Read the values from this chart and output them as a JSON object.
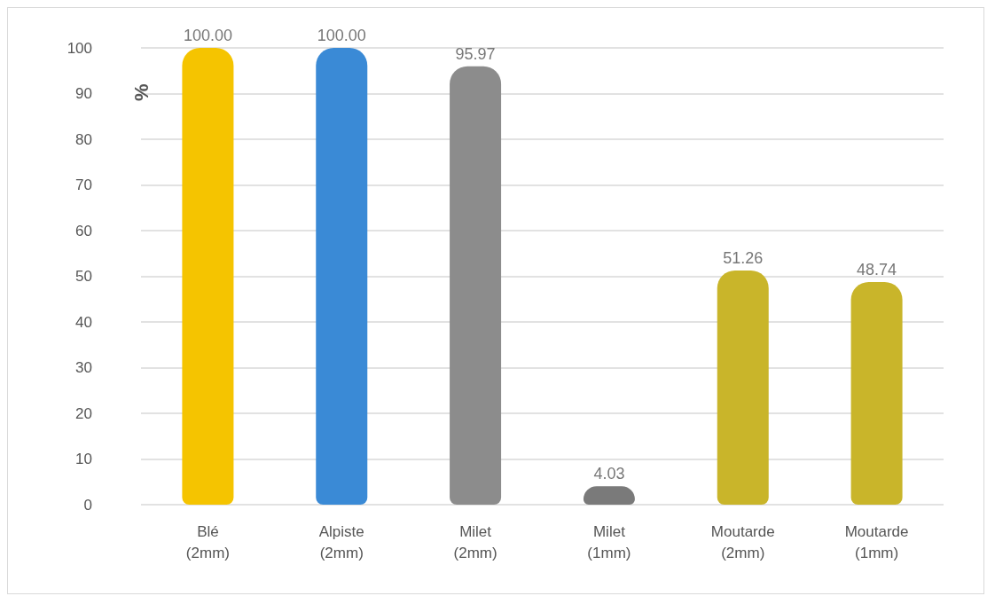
{
  "chart_data": {
    "type": "bar",
    "ylabel": "%",
    "categories": [
      "Blé (2mm)",
      "Alpiste (2mm)",
      "Milet (2mm)",
      "Milet (1mm)",
      "Moutarde (2mm)",
      "Moutarde (1mm)"
    ],
    "values": [
      100,
      100,
      95.97,
      4.03,
      51.26,
      48.74
    ],
    "colors": [
      "#f5c400",
      "#3a8ad6",
      "#8c8c8c",
      "#7a7a7a",
      "#c9b52a",
      "#c9b52a"
    ],
    "value_labels": [
      "100.00",
      "100.00",
      "95.97",
      "4.03",
      "51.26",
      "48.74"
    ],
    "ylim": [
      0,
      100
    ],
    "yticks": [
      0,
      10,
      20,
      30,
      40,
      50,
      60,
      70,
      80,
      90,
      100
    ],
    "grid": "y"
  }
}
